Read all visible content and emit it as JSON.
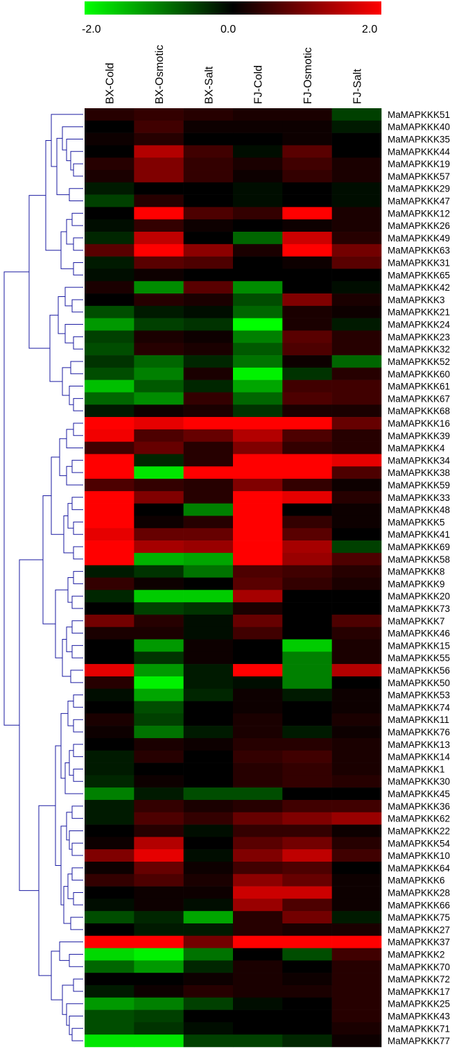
{
  "chart_data": {
    "type": "heatmap",
    "colorscale": {
      "min": -2.0,
      "max": 2.0,
      "tick_labels": [
        "-2.0",
        "0.0",
        "2.0"
      ],
      "low_color": "#00ff00",
      "mid_color": "#000000",
      "high_color": "#ff0000"
    },
    "columns": [
      "BX-Cold",
      "BX-Osmotic",
      "BX-Salt",
      "FJ-Cold",
      "FJ-Osmotic",
      "FJ-Salt"
    ],
    "rows": [
      {
        "name": "MaMAPKKK51",
        "values": [
          0.3,
          0.4,
          0.3,
          0.2,
          0.2,
          -0.5
        ]
      },
      {
        "name": "MaMAPKKK40",
        "values": [
          0.0,
          0.5,
          0.1,
          0.1,
          0.1,
          -0.2
        ]
      },
      {
        "name": "MaMAPKKK35",
        "values": [
          0.1,
          0.3,
          0.0,
          0.0,
          0.1,
          0.0
        ]
      },
      {
        "name": "MaMAPKKK44",
        "values": [
          0.0,
          1.4,
          0.5,
          -0.1,
          0.7,
          0.0
        ]
      },
      {
        "name": "MaMAPKKK19",
        "values": [
          0.3,
          1.0,
          0.4,
          0.2,
          0.5,
          0.2
        ]
      },
      {
        "name": "MaMAPKKK57",
        "values": [
          0.2,
          1.0,
          0.4,
          0.1,
          0.4,
          0.2
        ]
      },
      {
        "name": "MaMAPKKK29",
        "values": [
          -0.2,
          0.0,
          0.0,
          -0.1,
          0.0,
          -0.1
        ]
      },
      {
        "name": "MaMAPKKK47",
        "values": [
          -0.5,
          0.3,
          0.0,
          -0.1,
          0.0,
          -0.1
        ]
      },
      {
        "name": "MaMAPKKK12",
        "values": [
          0.0,
          2.0,
          0.6,
          0.4,
          2.0,
          0.2
        ]
      },
      {
        "name": "MaMAPKKK26",
        "values": [
          -0.1,
          0.4,
          0.1,
          0.0,
          0.1,
          0.2
        ]
      },
      {
        "name": "MaMAPKKK49",
        "values": [
          -0.3,
          1.5,
          0.0,
          -0.8,
          1.6,
          0.3
        ]
      },
      {
        "name": "MaMAPKKK63",
        "values": [
          0.7,
          2.0,
          1.1,
          0.2,
          2.0,
          0.9
        ]
      },
      {
        "name": "MaMAPKKK31",
        "values": [
          -0.2,
          0.7,
          0.6,
          0.0,
          0.1,
          0.7
        ]
      },
      {
        "name": "MaMAPKKK65",
        "values": [
          -0.1,
          0.1,
          0.0,
          0.0,
          0.0,
          0.0
        ]
      },
      {
        "name": "MaMAPKKK42",
        "values": [
          0.2,
          -1.1,
          0.7,
          -1.1,
          0.0,
          -0.1
        ]
      },
      {
        "name": "MaMAPKKK3",
        "values": [
          0.0,
          0.3,
          0.2,
          -0.6,
          1.0,
          0.2
        ]
      },
      {
        "name": "MaMAPKKK21",
        "values": [
          -0.6,
          -0.2,
          -0.1,
          -0.8,
          0.2,
          0.1
        ]
      },
      {
        "name": "MaMAPKKK24",
        "values": [
          -1.2,
          -0.5,
          -0.4,
          -2.0,
          0.2,
          -0.2
        ]
      },
      {
        "name": "MaMAPKKK23",
        "values": [
          -0.5,
          0.2,
          0.1,
          -1.0,
          0.7,
          0.3
        ]
      },
      {
        "name": "MaMAPKKK32",
        "values": [
          -0.6,
          0.3,
          0.2,
          -0.7,
          0.6,
          0.3
        ]
      },
      {
        "name": "MaMAPKKK52",
        "values": [
          -0.4,
          -0.8,
          -0.3,
          -0.9,
          0.1,
          -0.8
        ]
      },
      {
        "name": "MaMAPKKK60",
        "values": [
          -0.6,
          -1.0,
          0.2,
          -1.9,
          -0.4,
          0.3
        ]
      },
      {
        "name": "MaMAPKKK61",
        "values": [
          -1.5,
          -0.7,
          -0.3,
          -1.3,
          0.5,
          0.5
        ]
      },
      {
        "name": "MaMAPKKK67",
        "values": [
          -0.8,
          -1.1,
          0.4,
          -0.8,
          0.6,
          0.5
        ]
      },
      {
        "name": "MaMAPKKK68",
        "values": [
          -0.2,
          0.1,
          0.2,
          -0.4,
          0.2,
          0.2
        ]
      },
      {
        "name": "MaMAPKKK16",
        "values": [
          2.0,
          1.8,
          2.0,
          2.0,
          2.0,
          0.8
        ]
      },
      {
        "name": "MaMAPKKK39",
        "values": [
          1.9,
          0.6,
          0.8,
          1.4,
          0.6,
          0.3
        ]
      },
      {
        "name": "MaMAPKKK4",
        "values": [
          0.5,
          0.8,
          0.3,
          1.0,
          0.4,
          0.3
        ]
      },
      {
        "name": "MaMAPKKK34",
        "values": [
          2.0,
          -0.3,
          0.3,
          2.0,
          2.0,
          1.8
        ]
      },
      {
        "name": "MaMAPKKK38",
        "values": [
          2.0,
          -1.8,
          2.0,
          2.0,
          2.0,
          0.6
        ]
      },
      {
        "name": "MaMAPKKK59",
        "values": [
          0.6,
          0.4,
          0.3,
          1.0,
          0.4,
          0.1
        ]
      },
      {
        "name": "MaMAPKKK33",
        "values": [
          2.0,
          1.0,
          0.3,
          2.0,
          1.8,
          0.3
        ]
      },
      {
        "name": "MaMAPKKK48",
        "values": [
          2.0,
          0.0,
          -1.0,
          2.0,
          0.0,
          0.1
        ]
      },
      {
        "name": "MaMAPKKK5",
        "values": [
          2.0,
          0.1,
          0.3,
          2.0,
          0.4,
          0.1
        ]
      },
      {
        "name": "MaMAPKKK41",
        "values": [
          1.8,
          0.8,
          0.8,
          2.0,
          0.7,
          0.0
        ]
      },
      {
        "name": "MaMAPKKK69",
        "values": [
          2.0,
          1.3,
          1.2,
          2.0,
          1.3,
          -0.5
        ]
      },
      {
        "name": "MaMAPKKK58",
        "values": [
          2.0,
          -1.4,
          -1.3,
          2.0,
          1.2,
          0.6
        ]
      },
      {
        "name": "MaMAPKKK8",
        "values": [
          -0.2,
          -0.4,
          -0.9,
          0.6,
          0.5,
          0.3
        ]
      },
      {
        "name": "MaMAPKKK9",
        "values": [
          0.4,
          0.1,
          0.0,
          0.7,
          0.4,
          0.2
        ]
      },
      {
        "name": "MaMAPKKK20",
        "values": [
          -0.3,
          -1.6,
          -1.6,
          1.3,
          0.0,
          0.0
        ]
      },
      {
        "name": "MaMAPKKK73",
        "values": [
          0.0,
          -0.5,
          -0.4,
          0.2,
          0.0,
          0.0
        ]
      },
      {
        "name": "MaMAPKKK7",
        "values": [
          0.9,
          0.3,
          -0.1,
          0.8,
          0.0,
          0.6
        ]
      },
      {
        "name": "MaMAPKKK46",
        "values": [
          0.2,
          0.2,
          -0.1,
          0.5,
          0.0,
          0.3
        ]
      },
      {
        "name": "MaMAPKKK15",
        "values": [
          0.0,
          -1.2,
          0.1,
          0.0,
          -1.6,
          0.2
        ]
      },
      {
        "name": "MaMAPKKK55",
        "values": [
          0.0,
          -0.4,
          0.1,
          0.0,
          -1.0,
          0.2
        ]
      },
      {
        "name": "MaMAPKKK56",
        "values": [
          1.8,
          -1.2,
          -0.2,
          2.0,
          -1.0,
          1.4
        ]
      },
      {
        "name": "MaMAPKKK50",
        "values": [
          0.3,
          -1.9,
          -0.2,
          -0.1,
          -1.0,
          0.0
        ]
      },
      {
        "name": "MaMAPKKK53",
        "values": [
          -0.1,
          -1.3,
          -0.3,
          0.1,
          -0.2,
          0.1
        ]
      },
      {
        "name": "MaMAPKKK74",
        "values": [
          0.0,
          -0.6,
          0.0,
          0.1,
          0.0,
          0.1
        ]
      },
      {
        "name": "MaMAPKKK11",
        "values": [
          0.2,
          -0.5,
          0.0,
          0.2,
          0.0,
          0.2
        ]
      },
      {
        "name": "MaMAPKKK76",
        "values": [
          0.1,
          -0.9,
          -0.2,
          0.2,
          -0.2,
          0.1
        ]
      },
      {
        "name": "MaMAPKKK13",
        "values": [
          0.0,
          0.2,
          0.1,
          0.3,
          0.3,
          0.2
        ]
      },
      {
        "name": "MaMAPKKK14",
        "values": [
          -0.2,
          0.3,
          0.0,
          0.4,
          0.5,
          0.2
        ]
      },
      {
        "name": "MaMAPKKK1",
        "values": [
          -0.2,
          0.0,
          0.0,
          0.3,
          0.4,
          0.2
        ]
      },
      {
        "name": "MaMAPKKK30",
        "values": [
          -0.3,
          0.1,
          0.0,
          0.3,
          0.4,
          0.3
        ]
      },
      {
        "name": "MaMAPKKK45",
        "values": [
          -1.0,
          -0.2,
          -0.6,
          -0.6,
          0.0,
          0.0
        ]
      },
      {
        "name": "MaMAPKKK36",
        "values": [
          -0.2,
          0.4,
          0.2,
          0.3,
          0.5,
          0.5
        ]
      },
      {
        "name": "MaMAPKKK62",
        "values": [
          -0.2,
          0.6,
          0.4,
          0.8,
          1.0,
          1.2
        ]
      },
      {
        "name": "MaMAPKKK22",
        "values": [
          0.0,
          0.3,
          -0.1,
          0.4,
          0.4,
          0.1
        ]
      },
      {
        "name": "MaMAPKKK54",
        "values": [
          0.1,
          1.4,
          0.0,
          0.7,
          0.9,
          0.3
        ]
      },
      {
        "name": "MaMAPKKK10",
        "values": [
          1.0,
          1.8,
          -0.1,
          1.0,
          1.5,
          0.5
        ]
      },
      {
        "name": "MaMAPKKK64",
        "values": [
          0.1,
          0.8,
          0.1,
          0.5,
          0.6,
          0.0
        ]
      },
      {
        "name": "MaMAPKKK6",
        "values": [
          0.4,
          0.6,
          0.2,
          1.1,
          0.8,
          0.1
        ]
      },
      {
        "name": "MaMAPKKK28",
        "values": [
          0.0,
          0.1,
          0.1,
          1.6,
          1.6,
          0.1
        ]
      },
      {
        "name": "MaMAPKKK66",
        "values": [
          -0.1,
          0.1,
          -0.1,
          1.2,
          0.6,
          0.1
        ]
      },
      {
        "name": "MaMAPKKK75",
        "values": [
          -0.6,
          -0.3,
          -1.3,
          0.3,
          0.9,
          -0.2
        ]
      },
      {
        "name": "MaMAPKKK27",
        "values": [
          0.0,
          -0.2,
          -0.2,
          0.3,
          0.2,
          0.2
        ]
      },
      {
        "name": "MaMAPKKK37",
        "values": [
          2.0,
          2.0,
          0.9,
          2.0,
          2.0,
          2.0
        ]
      },
      {
        "name": "MaMAPKKK2",
        "values": [
          -1.7,
          -1.9,
          -0.9,
          0.0,
          -0.6,
          0.5
        ]
      },
      {
        "name": "MaMAPKKK70",
        "values": [
          -0.8,
          -1.2,
          -0.3,
          0.2,
          0.0,
          0.3
        ]
      },
      {
        "name": "MaMAPKKK72",
        "values": [
          0.0,
          0.0,
          0.1,
          0.2,
          0.1,
          0.3
        ]
      },
      {
        "name": "MaMAPKKK17",
        "values": [
          -0.2,
          0.1,
          0.3,
          0.2,
          0.2,
          0.3
        ]
      },
      {
        "name": "MaMAPKKK25",
        "values": [
          -1.2,
          -1.0,
          -0.5,
          -0.1,
          0.0,
          0.3
        ]
      },
      {
        "name": "MaMAPKKK43",
        "values": [
          -0.6,
          -0.5,
          0.0,
          0.0,
          0.0,
          0.3
        ]
      },
      {
        "name": "MaMAPKKK71",
        "values": [
          -0.6,
          -0.4,
          -0.1,
          0.0,
          0.0,
          0.2
        ]
      },
      {
        "name": "MaMAPKKK77",
        "values": [
          -1.8,
          -1.8,
          -0.5,
          -0.5,
          -0.3,
          0.1
        ]
      }
    ],
    "dendrogram_color": "#1a1aa0"
  }
}
